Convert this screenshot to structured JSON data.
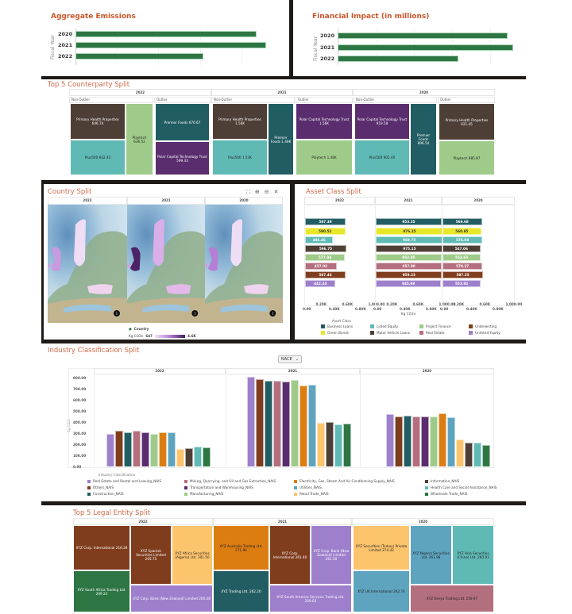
{
  "aggregate_emissions": {
    "title": "Aggregate Emissions",
    "axis_label": "Fiscal Year",
    "categories": [
      "2020",
      "2021",
      "2022"
    ],
    "relative_values": [
      0.95,
      1.0,
      0.67
    ],
    "bar_color": "#2e7544"
  },
  "financial_impact": {
    "title": "Financial Impact (in millions)",
    "axis_label": "Fiscal Year",
    "categories": [
      "2020",
      "2021",
      "2022"
    ],
    "relative_values": [
      0.97,
      1.0,
      0.69
    ],
    "bar_color": "#2e7544"
  },
  "counterparty": {
    "title": "Top 5 Counterparty Split",
    "years": [
      {
        "year": "2022",
        "groups": [
          {
            "label": "Non-Outlier",
            "tiles": [
              {
                "label": "Primary Health Properties 646.74",
                "color": "#4e3f36"
              },
              {
                "label": "Plus500 642.42",
                "color": "#5fb9b5",
                "dark": true
              },
              {
                "label": "Playtech 636.52",
                "color": "#9fcb8a",
                "dark": true
              }
            ]
          },
          {
            "label": "Outlier",
            "tiles": [
              {
                "label": "Premier Foods 670.67",
                "color": "#225d63"
              },
              {
                "label": "Polar Capital Technology Trust 599.43",
                "color": "#5a2e6e"
              }
            ]
          }
        ]
      },
      {
        "year": "2021",
        "groups": [
          {
            "label": "Non-Outlier",
            "tiles": [
              {
                "label": "Primary Health Properties 1.56K",
                "color": "#4e3f36"
              },
              {
                "label": "Plus500 1.53K",
                "color": "#5fb9b5",
                "dark": true
              },
              {
                "label": "Premier Foods 1.49K",
                "color": "#225d63"
              }
            ]
          },
          {
            "label": "Outlier",
            "tiles": [
              {
                "label": "Polar Capital Technology Trust 1.56K",
                "color": "#5a2e6e"
              },
              {
                "label": "Playtech 1.48K",
                "color": "#9fcb8a",
                "dark": true
              }
            ]
          }
        ]
      },
      {
        "year": "2020",
        "groups": [
          {
            "label": "Non-Outlier",
            "tiles": [
              {
                "label": "Polar Capital Technology Trust 919.58",
                "color": "#5a2e6e"
              },
              {
                "label": "Plus500 902.40",
                "color": "#5fb9b5",
                "dark": true
              },
              {
                "label": "Premier Foods 896.54",
                "color": "#225d63"
              }
            ]
          },
          {
            "label": "Outlier",
            "tiles": [
              {
                "label": "Primary Health Properties 921.45",
                "color": "#4e3f36"
              },
              {
                "label": "Playtech 885.87",
                "color": "#9fcb8a",
                "dark": true
              }
            ]
          }
        ]
      }
    ]
  },
  "country": {
    "title": "Country Split",
    "toolbar_icons": [
      "fit-icon",
      "zoom-in-icon",
      "zoom-out-icon",
      "expand-icon"
    ],
    "years": [
      "2022",
      "2021",
      "2020"
    ],
    "legend_title": "Country",
    "legend_measure": "Kg CO2e",
    "legend_min": "647",
    "legend_max": "4.6K",
    "info_icon": "info-icon"
  },
  "asset_class": {
    "title": "Asset Class Split",
    "years": [
      "2022",
      "2021",
      "2020"
    ],
    "ticks": [
      "0.00",
      "0.20K",
      "0.40K",
      "0.60K",
      "0.80K",
      "1,000.00"
    ],
    "axis_label": "Kg CO2e",
    "legend_title": "Asset Class",
    "classes": [
      {
        "name": "Business Loans",
        "color": "#225d63"
      },
      {
        "name": "Green Bonds",
        "color": "#e8e72a",
        "dark": true
      },
      {
        "name": "Listed Equity",
        "color": "#5fb9b5"
      },
      {
        "name": "Motor Vehicle Loans",
        "color": "#4e3f36"
      },
      {
        "name": "Project Finance",
        "color": "#9fcb8a"
      },
      {
        "name": "Real Estate",
        "color": "#b46f7e"
      },
      {
        "name": "Underwriting",
        "color": "#7f3d1e"
      },
      {
        "name": "Unlisted Equity",
        "color": "#9e7fcc"
      }
    ],
    "values": {
      "2022": [
        "587.39",
        "580.52",
        "406.46",
        "596.75",
        "577.04",
        "457.03",
        "587.46",
        "442.34"
      ],
      "2021": [
        "953.35",
        "976.25",
        "969.75",
        "975.15",
        "952.95",
        "957.00",
        "959.23",
        "945.98"
      ],
      "2020": [
        "569.68",
        "560.85",
        "576.08",
        "547.06",
        "552.65",
        "578.27",
        "587.35",
        "553.92"
      ]
    }
  },
  "industry": {
    "title": "Industry Classification Split",
    "selector_value": "NACE",
    "y_label": "Kg CO2e",
    "y_ticks": [
      "0.00",
      "100.00",
      "200.00",
      "300.00",
      "400.00",
      "500.00",
      "600.00",
      "700.00",
      "800.00"
    ],
    "legend_title": "Industry Classification",
    "chart_data": {
      "type": "bar",
      "ylabel": "Kg CO2e",
      "ylim": [
        0,
        800
      ],
      "categories": [
        "2022",
        "2021",
        "2020"
      ],
      "series": [
        {
          "name": "Real Estate and Rental and Leasing_NAIS",
          "color": "#9e7fcc",
          "values": [
            295,
            804,
            471
          ]
        },
        {
          "name": "Others_NAIS",
          "color": "#7f3d1e",
          "values": [
            324,
            783,
            449
          ]
        },
        {
          "name": "Construction_NAIS",
          "color": "#225d63",
          "values": [
            307,
            775,
            459
          ]
        },
        {
          "name": "Mining, Quarrying, and Oil and Gas Extraction_NAIS",
          "color": "#b46f7e",
          "values": [
            319,
            770,
            449
          ]
        },
        {
          "name": "Transportation and Warehousing_NAIS",
          "color": "#5a2e6e",
          "values": [
            309,
            766,
            451
          ]
        },
        {
          "name": "Manufacturing_NAIS",
          "color": "#9fcb8a",
          "values": [
            295,
            780,
            451
          ]
        },
        {
          "name": "Electricity, Gas, Steam And Air Conditioning Supply_NAIS",
          "color": "#dc7d12",
          "values": [
            305,
            732,
            478
          ]
        },
        {
          "name": "Utilities_NAIS",
          "color": "#5ea4bf",
          "values": [
            307,
            734,
            442
          ]
        },
        {
          "name": "Retail Trade_NAIS",
          "color": "#fcc46c",
          "values": [
            154,
            396,
            245
          ]
        },
        {
          "name": "Information_NAIS",
          "color": "#4e3f36",
          "values": [
            161,
            403,
            212
          ]
        },
        {
          "name": "Health Care and Social Assistance_NAIS",
          "color": "#5fb9b5",
          "values": [
            176,
            379,
            212
          ]
        },
        {
          "name": "Wholesale Trade_NAIS",
          "color": "#2e7544",
          "values": [
            168,
            387,
            190
          ]
        }
      ]
    }
  },
  "legal_entity": {
    "title": "Top 5 Legal Entity Split",
    "years": [
      {
        "year": "2022",
        "tiles": [
          {
            "label": "XYZ Corp. International 218.28",
            "color": "#7f3d1e"
          },
          {
            "label": "XYZ South Africa Trading Ltd. 209.23",
            "color": "#2e7544"
          },
          {
            "label": "XYZ Spanish Securities Limited 205.75",
            "color": "#7f3d1e"
          },
          {
            "label": "XYZ Africa Securities (Algeria) Ltd. 201.50",
            "color": "#fcc46c",
            "dark": true
          },
          {
            "label": "XYZ Corp. Bank (New Zealand) Limited 200.48",
            "color": "#9e7fcc"
          }
        ]
      },
      {
        "year": "2021",
        "tiles": [
          {
            "label": "XYZ Australia Trading Ltd. 271.96",
            "color": "#dc7d12",
            "dark": true
          },
          {
            "label": "XYZ Trading Ltd. 262.20",
            "color": "#225d63"
          },
          {
            "label": "XYZ Corp. International 261.40",
            "color": "#7f3d1e"
          },
          {
            "label": "XYZ Corp. Bank (New Zealand) Limited 261.50",
            "color": "#9e7fcc"
          },
          {
            "label": "XYZ South America Services Trading Ltd. 259.63",
            "color": "#9e7fcc"
          }
        ]
      },
      {
        "year": "2020",
        "tiles": [
          {
            "label": "XYZ Securities (Turkey) Private Limited 274.42",
            "color": "#fcc46c",
            "dark": true
          },
          {
            "label": "XYZ UK International 262.76",
            "color": "#5ea4bf",
            "dark": true
          },
          {
            "label": "XYZ Nigeria Securities Ltd. 261.98",
            "color": "#5ea4bf",
            "dark": true
          },
          {
            "label": "XYZ Asia Securities (China) Ltd. 260.91",
            "color": "#5fb9b5",
            "dark": true
          },
          {
            "label": "XYZ Kenya Trading Ltd. 259.97",
            "color": "#b46f7e",
            "dark": true
          }
        ]
      }
    ]
  }
}
